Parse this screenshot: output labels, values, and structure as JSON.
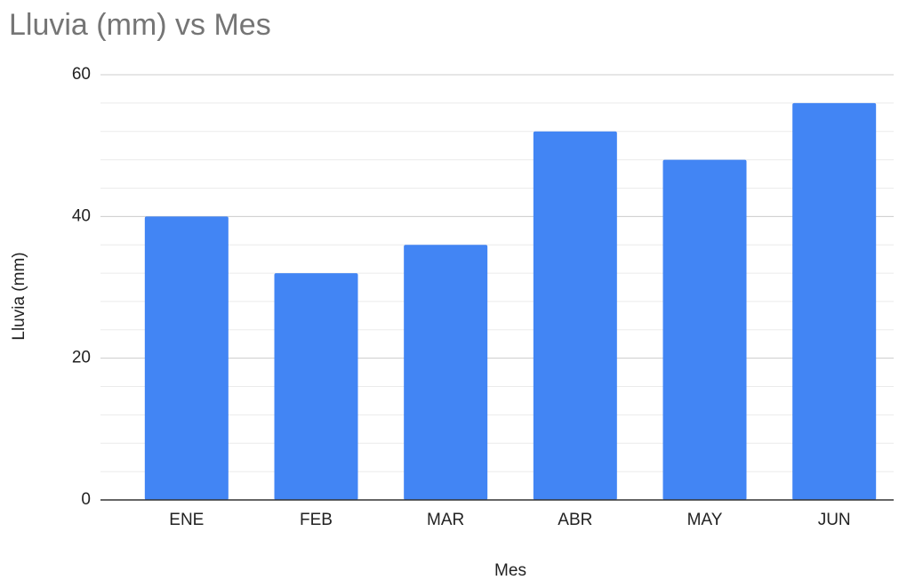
{
  "chart_data": {
    "type": "bar",
    "title": "Lluvia (mm) vs Mes",
    "x_label": "Mes",
    "y_label": "Lluvia (mm)",
    "categories": [
      "ENE",
      "FEB",
      "MAR",
      "ABR",
      "MAY",
      "JUN"
    ],
    "values": [
      40,
      32,
      36,
      52,
      48,
      56
    ],
    "color": "#4285f4",
    "ylim": [
      0,
      60
    ],
    "yticks": [
      0,
      20,
      40,
      60
    ],
    "grid": true,
    "minor_gridlines": 4
  }
}
